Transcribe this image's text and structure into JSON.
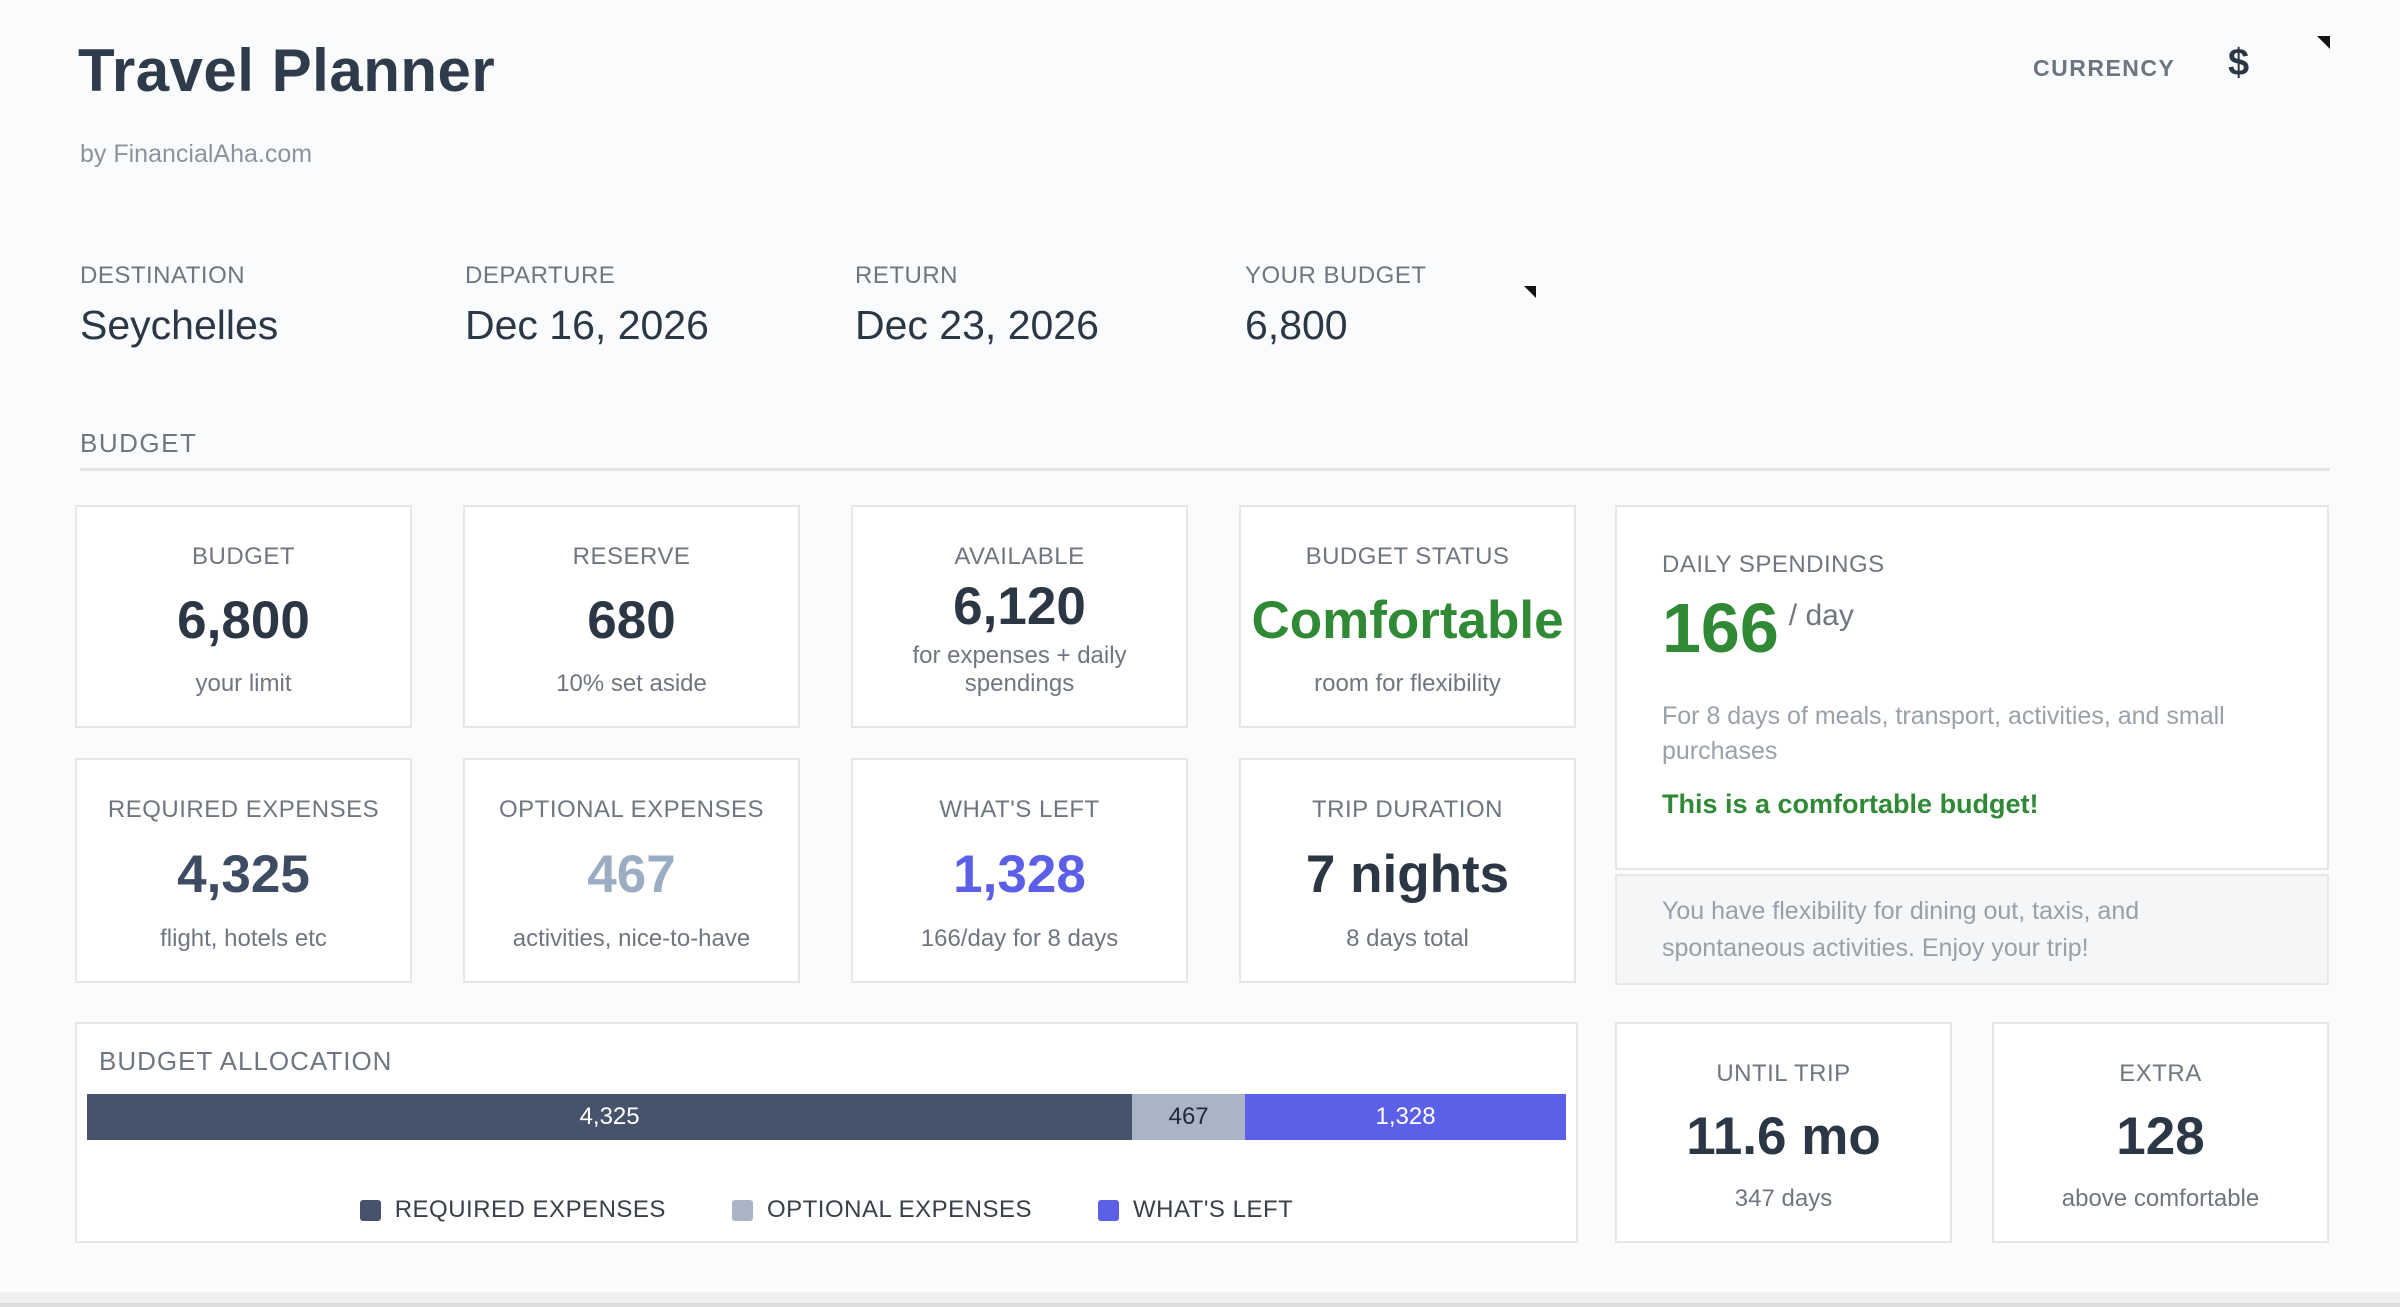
{
  "header": {
    "title": "Travel Planner",
    "subtitle": "by FinancialAha.com",
    "currency_label": "CURRENCY",
    "currency_value": "$"
  },
  "trip": {
    "fields": [
      {
        "label": "DESTINATION",
        "value": "Seychelles"
      },
      {
        "label": "DEPARTURE",
        "value": "Dec 16, 2026"
      },
      {
        "label": "RETURN",
        "value": "Dec 23, 2026"
      },
      {
        "label": "YOUR BUDGET",
        "value": "6,800"
      }
    ]
  },
  "budget_section_title": "BUDGET",
  "cards": {
    "budget": {
      "title": "BUDGET",
      "value": "6,800",
      "subtitle": "your limit"
    },
    "reserve": {
      "title": "RESERVE",
      "value": "680",
      "subtitle": "10% set aside"
    },
    "available": {
      "title": "AVAILABLE",
      "value": "6,120",
      "subtitle": "for expenses + daily spendings"
    },
    "status": {
      "title": "BUDGET STATUS",
      "value": "Comfortable",
      "subtitle": "room for flexibility"
    },
    "required": {
      "title": "REQUIRED EXPENSES",
      "value": "4,325",
      "subtitle": "flight, hotels etc"
    },
    "optional": {
      "title": "OPTIONAL EXPENSES",
      "value": "467",
      "subtitle": "activities, nice-to-have"
    },
    "whats_left": {
      "title": "WHAT'S LEFT",
      "value": "1,328",
      "subtitle": "166/day for 8 days"
    },
    "duration": {
      "title": "TRIP DURATION",
      "value": "7 nights",
      "subtitle": "8 days total"
    },
    "until_trip": {
      "title": "UNTIL TRIP",
      "value": "11.6 mo",
      "subtitle": "347 days"
    },
    "extra": {
      "title": "EXTRA",
      "value": "128",
      "subtitle": "above comfortable"
    }
  },
  "daily": {
    "title": "DAILY SPENDINGS",
    "value": "166",
    "unit": "/ day",
    "description": "For 8 days of meals, transport, activities, and small purchases",
    "note": "This is a comfortable budget!",
    "footer": "You have flexibility for dining out, taxis, and spontaneous activities. Enjoy your trip!"
  },
  "allocation": {
    "title": "BUDGET ALLOCATION",
    "total": 6120,
    "segments": [
      {
        "name": "REQUIRED EXPENSES",
        "amount": 4325,
        "bar_label": "4,325",
        "color": "#47536b",
        "text_color": "#ffffff"
      },
      {
        "name": "OPTIONAL EXPENSES",
        "amount": 467,
        "bar_label": "467",
        "color": "#a9b5c6",
        "text_color": "#212b38"
      },
      {
        "name": "WHAT'S LEFT",
        "amount": 1328,
        "bar_label": "1,328",
        "color": "#5c60e8",
        "text_color": "#ffffff"
      }
    ]
  },
  "colors": {
    "green": "#2f8935",
    "purple": "#5b5fe8",
    "muted_blue": "#9badc2",
    "slate": "#3d4c63",
    "dark": "#2b3744"
  }
}
